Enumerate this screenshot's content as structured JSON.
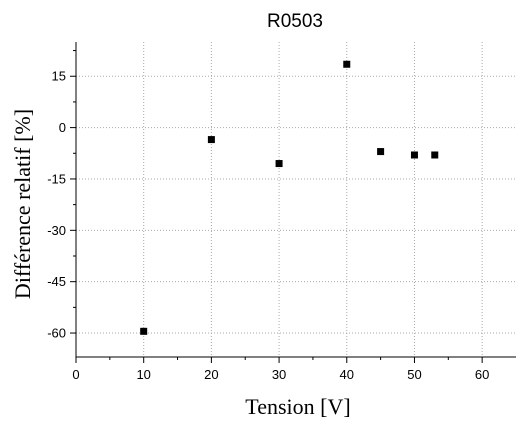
{
  "chart_data": {
    "type": "scatter",
    "title": "R0503",
    "xlabel": "Tension [V]",
    "ylabel": "Différence relatif [%]",
    "xlim": [
      0,
      65
    ],
    "ylim": [
      -67,
      25
    ],
    "x_ticks": [
      0,
      10,
      20,
      30,
      40,
      50,
      60
    ],
    "y_ticks": [
      15,
      0,
      -15,
      -30,
      -45,
      -60
    ],
    "x_tick_labels": [
      "0",
      "10",
      "20",
      "30",
      "40",
      "50",
      "60"
    ],
    "y_tick_labels": [
      "15",
      "0",
      "-15",
      "-30",
      "-45",
      "-60"
    ],
    "grid": true,
    "marker": "square",
    "marker_color": "#000000",
    "series": [
      {
        "x": [
          10,
          20,
          30,
          40,
          45,
          50,
          53
        ],
        "y": [
          -59.5,
          -3.5,
          -10.5,
          18.5,
          -7,
          -8,
          -8
        ]
      }
    ]
  }
}
